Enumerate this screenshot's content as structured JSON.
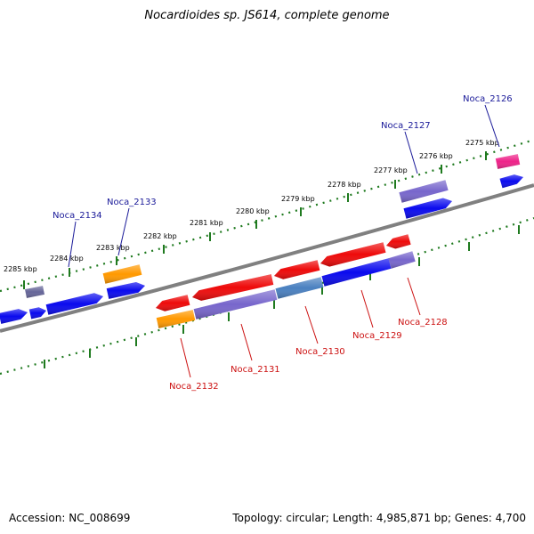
{
  "title": "Nocardioides sp. JS614, complete genome",
  "footer": {
    "accession": "Accession: NC_008699",
    "topology": "Topology: circular; Length: 4,985,871 bp; Genes: 4,700"
  },
  "colors": {
    "backbone": "#808080",
    "ruler": "#1f7a1f",
    "label_forward": "#1a1a99",
    "label_reverse": "#cc1111",
    "gene_blue": "#0a0aee",
    "gene_red": "#ee0a0a",
    "gene_purple": "#7766cc",
    "gene_orange": "#ff9900",
    "gene_steel": "#4a80c0",
    "gene_pink": "#ee2288"
  },
  "ticks": [
    {
      "label": "2275 kbp"
    },
    {
      "label": "2276 kbp"
    },
    {
      "label": "2277 kbp"
    },
    {
      "label": "2278 kbp"
    },
    {
      "label": "2279 kbp"
    },
    {
      "label": "2280 kbp"
    },
    {
      "label": "2281 kbp"
    },
    {
      "label": "2282 kbp"
    },
    {
      "label": "2283 kbp"
    },
    {
      "label": "2284 kbp"
    },
    {
      "label": "2285 kbp"
    }
  ],
  "gene_labels": [
    {
      "name": "Noca_2126",
      "strand": "forward"
    },
    {
      "name": "Noca_2127",
      "strand": "forward"
    },
    {
      "name": "Noca_2133",
      "strand": "forward"
    },
    {
      "name": "Noca_2134",
      "strand": "forward"
    },
    {
      "name": "Noca_2128",
      "strand": "reverse"
    },
    {
      "name": "Noca_2129",
      "strand": "reverse"
    },
    {
      "name": "Noca_2130",
      "strand": "reverse"
    },
    {
      "name": "Noca_2131",
      "strand": "reverse"
    },
    {
      "name": "Noca_2132",
      "strand": "reverse"
    }
  ]
}
